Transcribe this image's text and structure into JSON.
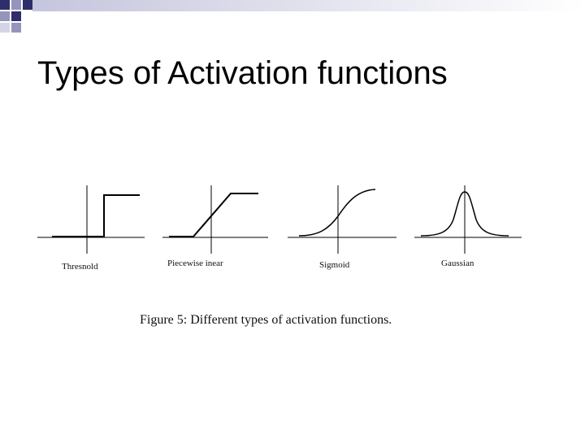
{
  "slide": {
    "title": "Types of Activation functions"
  },
  "figure": {
    "panels": [
      {
        "name": "Threshold",
        "label": "Thresnold"
      },
      {
        "name": "Piecewise linear",
        "label": "Piecewise  inear"
      },
      {
        "name": "Sigmoid",
        "label": "Sigmoid"
      },
      {
        "name": "Gaussian",
        "label": "Gaussian"
      }
    ],
    "caption": "Figure 5: Different types of activation functions."
  },
  "colors": {
    "band_dark": "#2e2e6b",
    "band_mid": "#9494bc",
    "band_light": "#d4d4e6",
    "line": "#000000"
  }
}
